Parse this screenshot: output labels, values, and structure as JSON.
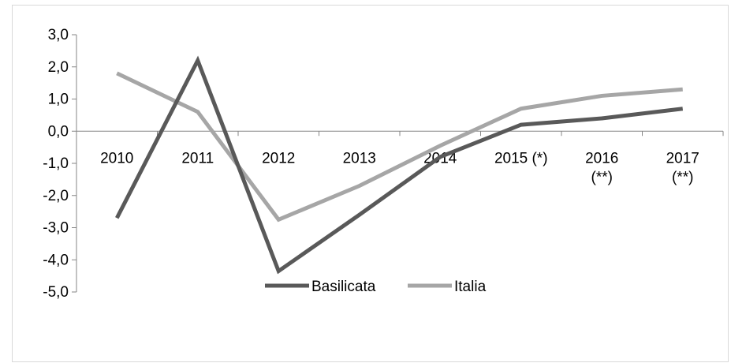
{
  "chart_data": {
    "type": "line",
    "categories": [
      [
        "2010"
      ],
      [
        "2011"
      ],
      [
        "2012"
      ],
      [
        "2013"
      ],
      [
        "2014"
      ],
      [
        "2015 (*)"
      ],
      [
        "2016",
        "(**)"
      ],
      [
        "2017",
        "(**)"
      ]
    ],
    "series": [
      {
        "name": "Basilicata",
        "color": "#595959",
        "values": [
          -2.7,
          2.2,
          -4.35,
          -2.6,
          -0.8,
          0.2,
          0.4,
          0.7
        ]
      },
      {
        "name": "Italia",
        "color": "#a6a6a6",
        "values": [
          1.8,
          0.6,
          -2.75,
          -1.7,
          -0.45,
          0.7,
          1.1,
          1.3
        ]
      }
    ],
    "y_ticks": [
      "3,0",
      "2,0",
      "1,0",
      "0,0",
      "-1,0",
      "-2,0",
      "-3,0",
      "-4,0",
      "-5,0"
    ],
    "ylim": [
      -5,
      3
    ],
    "grid": false,
    "legend_position": "bottom-center"
  }
}
